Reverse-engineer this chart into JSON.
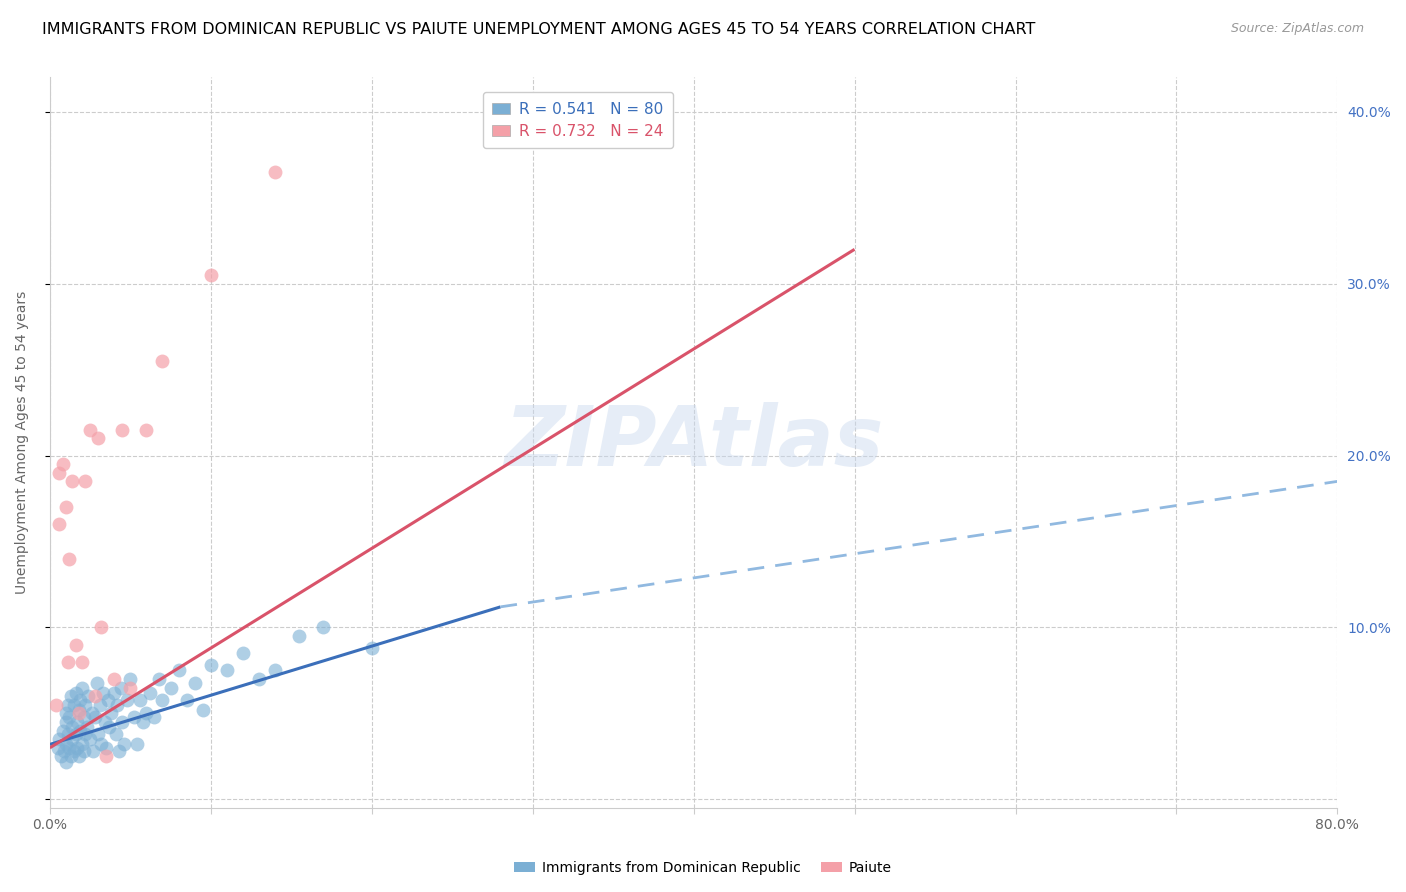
{
  "title": "IMMIGRANTS FROM DOMINICAN REPUBLIC VS PAIUTE UNEMPLOYMENT AMONG AGES 45 TO 54 YEARS CORRELATION CHART",
  "source": "Source: ZipAtlas.com",
  "ylabel": "Unemployment Among Ages 45 to 54 years",
  "blue_label": "Immigrants from Dominican Republic",
  "pink_label": "Paiute",
  "blue_R": "0.541",
  "blue_N": "80",
  "pink_R": "0.732",
  "pink_N": "24",
  "blue_color": "#7bafd4",
  "pink_color": "#f4a0a8",
  "blue_line_color": "#3b6fba",
  "pink_line_color": "#d9536a",
  "dashed_line_color": "#91b9e0",
  "watermark": "ZIPAtlas",
  "xlim": [
    0.0,
    0.8
  ],
  "ylim": [
    -0.005,
    0.42
  ],
  "yticks": [
    0.0,
    0.1,
    0.2,
    0.3,
    0.4
  ],
  "ytick_labels_right": [
    "",
    "10.0%",
    "20.0%",
    "30.0%",
    "40.0%"
  ],
  "xticks": [
    0.0,
    0.1,
    0.2,
    0.3,
    0.4,
    0.5,
    0.6,
    0.7,
    0.8
  ],
  "xtick_labels": [
    "0.0%",
    "",
    "",
    "",
    "",
    "",
    "",
    "",
    "80.0%"
  ],
  "blue_scatter_x": [
    0.005,
    0.006,
    0.007,
    0.008,
    0.009,
    0.01,
    0.01,
    0.01,
    0.01,
    0.011,
    0.011,
    0.012,
    0.012,
    0.013,
    0.013,
    0.014,
    0.014,
    0.015,
    0.015,
    0.016,
    0.016,
    0.017,
    0.017,
    0.018,
    0.018,
    0.019,
    0.019,
    0.02,
    0.02,
    0.021,
    0.021,
    0.022,
    0.022,
    0.023,
    0.024,
    0.025,
    0.026,
    0.027,
    0.028,
    0.029,
    0.03,
    0.031,
    0.032,
    0.033,
    0.034,
    0.035,
    0.036,
    0.037,
    0.038,
    0.04,
    0.041,
    0.042,
    0.043,
    0.044,
    0.045,
    0.046,
    0.048,
    0.05,
    0.052,
    0.054,
    0.056,
    0.058,
    0.06,
    0.062,
    0.065,
    0.068,
    0.07,
    0.075,
    0.08,
    0.085,
    0.09,
    0.095,
    0.1,
    0.11,
    0.12,
    0.13,
    0.14,
    0.155,
    0.17,
    0.2
  ],
  "blue_scatter_y": [
    0.03,
    0.035,
    0.025,
    0.04,
    0.028,
    0.045,
    0.032,
    0.05,
    0.022,
    0.038,
    0.055,
    0.03,
    0.048,
    0.025,
    0.06,
    0.035,
    0.042,
    0.028,
    0.055,
    0.038,
    0.062,
    0.03,
    0.045,
    0.052,
    0.025,
    0.04,
    0.058,
    0.032,
    0.065,
    0.048,
    0.028,
    0.055,
    0.038,
    0.042,
    0.06,
    0.035,
    0.05,
    0.028,
    0.048,
    0.068,
    0.038,
    0.055,
    0.032,
    0.062,
    0.045,
    0.03,
    0.058,
    0.042,
    0.05,
    0.062,
    0.038,
    0.055,
    0.028,
    0.065,
    0.045,
    0.032,
    0.058,
    0.07,
    0.048,
    0.032,
    0.058,
    0.045,
    0.05,
    0.062,
    0.048,
    0.07,
    0.058,
    0.065,
    0.075,
    0.058,
    0.068,
    0.052,
    0.078,
    0.075,
    0.085,
    0.07,
    0.075,
    0.095,
    0.1,
    0.088
  ],
  "pink_scatter_x": [
    0.004,
    0.006,
    0.006,
    0.008,
    0.01,
    0.011,
    0.012,
    0.014,
    0.016,
    0.018,
    0.02,
    0.022,
    0.025,
    0.028,
    0.03,
    0.032,
    0.035,
    0.04,
    0.045,
    0.05,
    0.06,
    0.07,
    0.1,
    0.14
  ],
  "pink_scatter_y": [
    0.055,
    0.19,
    0.16,
    0.195,
    0.17,
    0.08,
    0.14,
    0.185,
    0.09,
    0.05,
    0.08,
    0.185,
    0.215,
    0.06,
    0.21,
    0.1,
    0.025,
    0.07,
    0.215,
    0.065,
    0.215,
    0.255,
    0.305,
    0.365
  ],
  "blue_trend_x": [
    0.0,
    0.28
  ],
  "blue_trend_y": [
    0.032,
    0.112
  ],
  "pink_trend_x": [
    0.0,
    0.5
  ],
  "pink_trend_y": [
    0.03,
    0.32
  ],
  "dashed_trend_x": [
    0.28,
    0.8
  ],
  "dashed_trend_y": [
    0.112,
    0.185
  ],
  "background_color": "#ffffff",
  "grid_color": "#cccccc",
  "title_color": "#000000",
  "axis_label_color": "#666666",
  "right_axis_color": "#4472c4",
  "title_fontsize": 11.5,
  "source_fontsize": 9,
  "axis_label_fontsize": 10,
  "tick_fontsize": 10,
  "legend_fontsize": 11
}
